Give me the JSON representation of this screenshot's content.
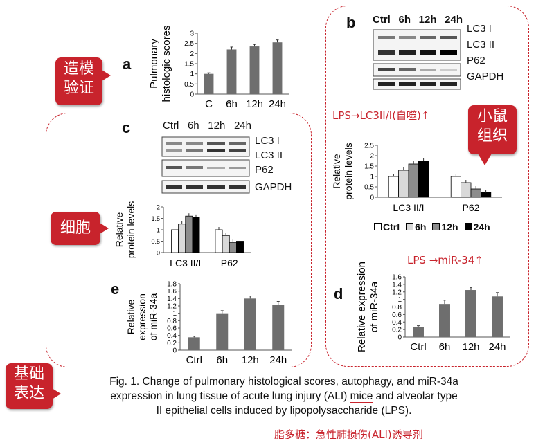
{
  "callouts": {
    "model": [
      "造模",
      "验证"
    ],
    "tissue": [
      "小鼠",
      "组织"
    ],
    "cell": [
      "细胞"
    ],
    "basis": [
      "基础",
      "表达"
    ]
  },
  "notes": {
    "lps_lc3": "LPS→LC3II/I(自噬)↑",
    "lps_mir": "LPS →miR-34↑",
    "lps_name": "脂多糖：急性肺损伤(ALI)诱导剂"
  },
  "panels": {
    "a": "a",
    "b": "b",
    "c": "c",
    "d": "d",
    "e": "e"
  },
  "blot_b": {
    "lanes": [
      "Ctrl",
      "6h",
      "12h",
      "24h"
    ],
    "rows": [
      "LC3 I",
      "LC3 II",
      "P62",
      "GAPDH"
    ]
  },
  "blot_c": {
    "lanes": [
      "Ctrl",
      "6h",
      "12h",
      "24h"
    ],
    "rows": [
      "LC3 I",
      "LC3 II",
      "P62",
      "GAPDH"
    ]
  },
  "legend": [
    "Ctrl",
    "6h",
    "12h",
    "24h"
  ],
  "legend_colors": [
    "#ffffff",
    "#d9d9d9",
    "#8c8c8c",
    "#000000"
  ],
  "caption": {
    "line1": "Fig. 1. Change of pulmonary histological scores, autophagy, and miR-34a",
    "line2a": "expression in lung tissue of acute lung injury (ALI) ",
    "line2b": "mice",
    "line2c": " and alveolar type",
    "line3a": "II epithelial ",
    "line3b": "cells",
    "line3c": " induced by ",
    "line3d": "lipopolysaccharide (LPS)",
    "line3e": "."
  },
  "chart_data": [
    {
      "id": "a",
      "type": "bar",
      "ylabel": [
        "Pulmonary",
        "histologic scores"
      ],
      "categories": [
        "C",
        "6h",
        "12h",
        "24h"
      ],
      "values": [
        1.0,
        2.2,
        2.35,
        2.55
      ],
      "errors": [
        0.05,
        0.12,
        0.1,
        0.12
      ],
      "ylim": [
        0,
        3
      ],
      "yticks": [
        "0",
        "0.5",
        "1",
        "1.5",
        "2",
        "2.5",
        "3"
      ],
      "star": [
        false,
        true,
        true,
        true
      ]
    },
    {
      "id": "b",
      "type": "bar",
      "ylabel": [
        "Relative",
        "protein levels"
      ],
      "groups": [
        "LC3 II/I",
        "P62"
      ],
      "series": [
        {
          "name": "Ctrl",
          "values": [
            1.0,
            1.0
          ]
        },
        {
          "name": "6h",
          "values": [
            1.3,
            0.7
          ]
        },
        {
          "name": "12h",
          "values": [
            1.6,
            0.4
          ]
        },
        {
          "name": "24h",
          "values": [
            1.75,
            0.22
          ]
        }
      ],
      "ylim": [
        0,
        2.5
      ],
      "yticks": [
        "0",
        "0.5",
        "1",
        "1.5",
        "2",
        "2.5"
      ]
    },
    {
      "id": "c",
      "type": "bar",
      "ylabel": [
        "Relative",
        "protein levels"
      ],
      "groups": [
        "LC3 II/I",
        "P62"
      ],
      "series": [
        {
          "name": "Ctrl",
          "values": [
            1.0,
            1.0
          ]
        },
        {
          "name": "6h",
          "values": [
            1.25,
            0.75
          ]
        },
        {
          "name": "12h",
          "values": [
            1.6,
            0.45
          ]
        },
        {
          "name": "24h",
          "values": [
            1.55,
            0.5
          ]
        }
      ],
      "ylim": [
        0,
        2
      ],
      "yticks": [
        "0",
        "0.5",
        "1",
        "1.5",
        "2"
      ]
    },
    {
      "id": "d",
      "type": "bar",
      "ylabel": [
        "Relative expression",
        "of miR-34a"
      ],
      "categories": [
        "Ctrl",
        "6h",
        "12h",
        "24h"
      ],
      "values": [
        0.27,
        0.88,
        1.25,
        1.08
      ],
      "errors": [
        0.03,
        0.1,
        0.07,
        0.1
      ],
      "ylim": [
        0,
        1.6
      ],
      "yticks": [
        "0",
        "0.2",
        "0.4",
        "0.6",
        "0.8",
        "1",
        "1.2",
        "1.4",
        "1.6"
      ],
      "star": [
        false,
        true,
        true,
        true
      ]
    },
    {
      "id": "e",
      "type": "bar",
      "ylabel": [
        "Relative",
        "expression",
        "of miR-34a"
      ],
      "categories": [
        "Ctrl",
        "6h",
        "12h",
        "24h"
      ],
      "values": [
        0.35,
        1.0,
        1.4,
        1.22
      ],
      "errors": [
        0.03,
        0.07,
        0.07,
        0.1
      ],
      "ylim": [
        0,
        1.8
      ],
      "yticks": [
        "0",
        "0.2",
        "0.4",
        "0.6",
        "0.8",
        "1",
        "1.2",
        "1.4",
        "1.6",
        "1.8"
      ],
      "star": [
        false,
        false,
        false,
        false
      ]
    }
  ]
}
